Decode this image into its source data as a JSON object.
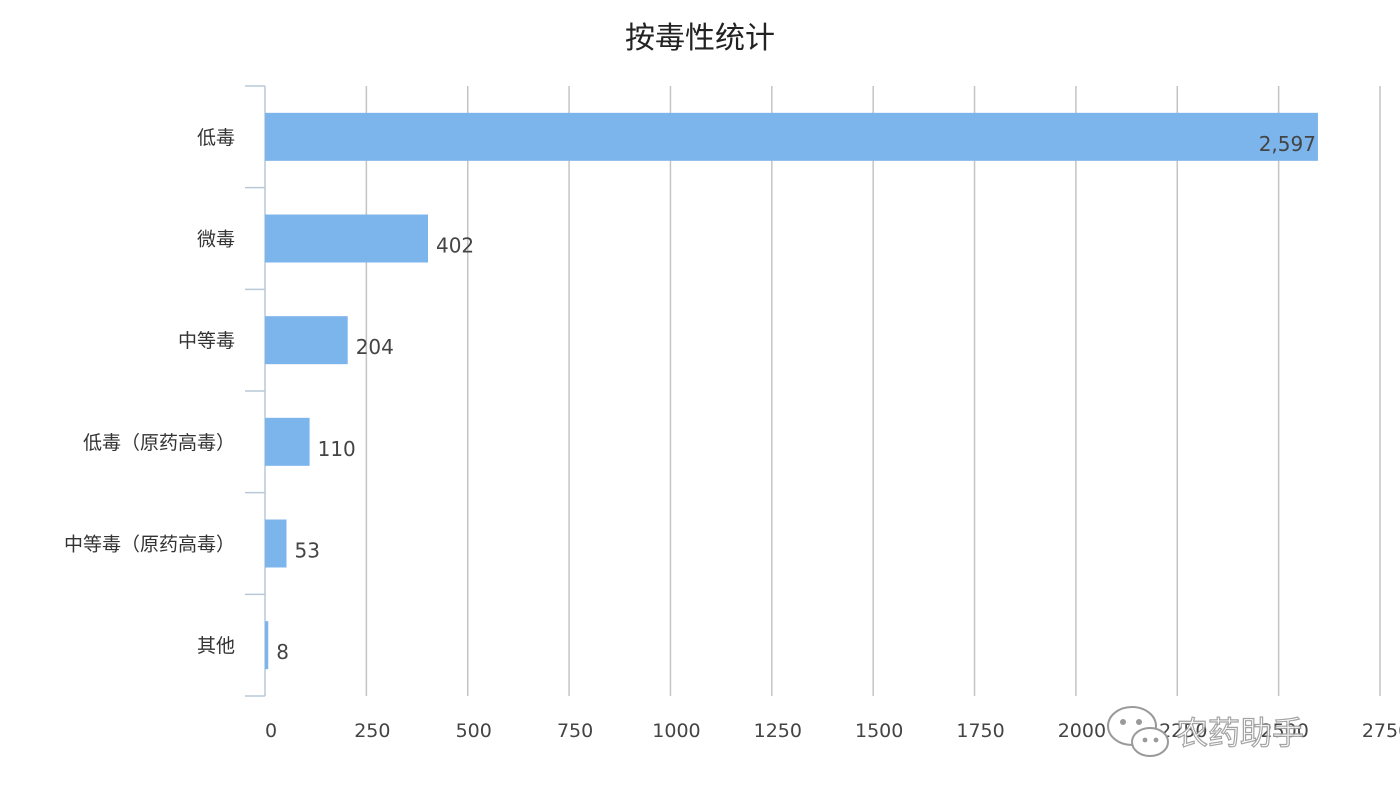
{
  "chart_data": {
    "type": "bar",
    "orientation": "horizontal",
    "title": "按毒性统计",
    "categories": [
      "低毒",
      "微毒",
      "中等毒",
      "低毒（原药高毒）",
      "中等毒（原药高毒）",
      "其他"
    ],
    "values": [
      2597,
      402,
      204,
      110,
      53,
      8
    ],
    "value_labels": [
      "2,597",
      "402",
      "204",
      "110",
      "53",
      "8"
    ],
    "x_ticks": [
      0,
      250,
      500,
      750,
      1000,
      1250,
      1500,
      1750,
      2000,
      2250,
      2500,
      2750
    ],
    "xlim": [
      0,
      2750
    ],
    "grid": true,
    "bar_color": "#7cb5ec",
    "legend": "none"
  },
  "watermark": {
    "text": "农药助手",
    "icon": "wechat-icon"
  }
}
